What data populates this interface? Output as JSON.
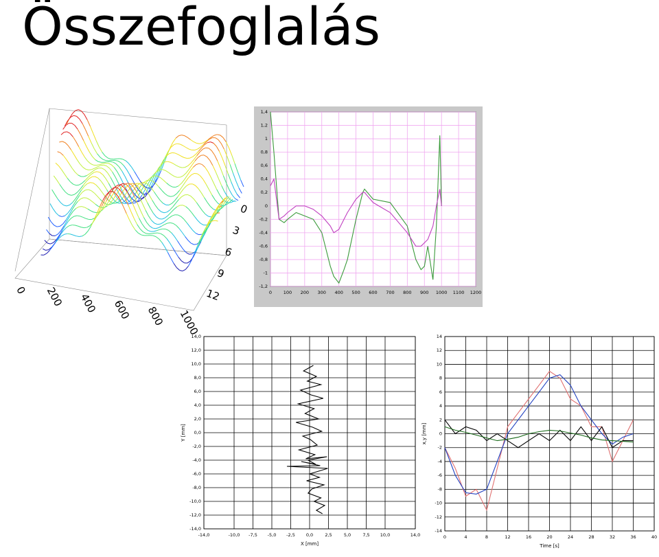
{
  "header": {
    "title": "Összefoglalás"
  },
  "chart_data": [
    {
      "type": "surface",
      "xticks": [
        0,
        200,
        400,
        600,
        800,
        1000
      ],
      "yticks": [
        0,
        3,
        6,
        9,
        12
      ]
    },
    {
      "type": "line",
      "x": [
        0,
        20,
        50,
        80,
        100,
        150,
        200,
        250,
        300,
        350,
        370,
        400,
        430,
        450,
        500,
        540,
        550,
        600,
        700,
        800,
        850,
        880,
        900,
        920,
        950,
        970,
        990,
        1000
      ],
      "series": [
        {
          "color": "#3a9a3a",
          "values": [
            1.4,
            0.8,
            -0.2,
            -0.25,
            -0.2,
            -0.1,
            -0.15,
            -0.2,
            -0.4,
            -0.9,
            -1.05,
            -1.15,
            -0.95,
            -0.8,
            -0.2,
            0.2,
            0.25,
            0.1,
            0.05,
            -0.3,
            -0.8,
            -0.95,
            -0.9,
            -0.6,
            -1.1,
            -0.3,
            1.05,
            0
          ]
        },
        {
          "color": "#c040c0",
          "values": [
            0.3,
            0.4,
            -0.2,
            -0.15,
            -0.1,
            0.0,
            0.0,
            -0.05,
            -0.15,
            -0.3,
            -0.4,
            -0.35,
            -0.2,
            -0.1,
            0.1,
            0.2,
            0.2,
            0.05,
            -0.1,
            -0.4,
            -0.6,
            -0.6,
            -0.55,
            -0.5,
            -0.3,
            0.0,
            0.25,
            0
          ]
        }
      ],
      "xlim": [
        0,
        1200
      ],
      "xticks": [
        0,
        100,
        200,
        300,
        400,
        500,
        600,
        700,
        800,
        900,
        1000,
        1100,
        1200
      ],
      "ylim": [
        -1.2,
        1.4
      ],
      "yticks": [
        {
          "value": -1.2,
          "label": "-1,2"
        },
        {
          "value": -1,
          "label": "-1"
        },
        {
          "value": -0.8,
          "label": "-0,8"
        },
        {
          "value": -0.6,
          "label": "-0,6"
        },
        {
          "value": -0.4,
          "label": "-0,4"
        },
        {
          "value": -0.2,
          "label": "-0,2"
        },
        0,
        {
          "value": 0.2,
          "label": "0,2"
        },
        {
          "value": 0.4,
          "label": "0,4"
        },
        {
          "value": 0.6,
          "label": "0,6"
        },
        {
          "value": 0.8,
          "label": "0,8"
        },
        1,
        {
          "value": 1.2,
          "label": "1,2"
        },
        {
          "value": 1.4,
          "label": "1,4"
        }
      ],
      "grid": true,
      "grid_color": "#f0a8f0",
      "background": "#c8c8c8"
    },
    {
      "type": "line",
      "xlabel": "X [mm]",
      "ylabel": "Y [mm]",
      "x": [
        0.5,
        -0.8,
        0.9,
        -0.3,
        1.5,
        -1.2,
        0.2,
        1.8,
        -1.5,
        0.6,
        -0.6,
        1.2,
        -1.8,
        0.4,
        1.6,
        -0.9,
        0.1,
        1.0,
        -1.4,
        0.7,
        -0.5,
        2.3,
        -0.2,
        0.8,
        -1.1,
        1.4,
        -3.0,
        2.4,
        0.0,
        1.3,
        -0.4,
        1.9,
        0.3,
        -0.2,
        1.5,
        0.6,
        2.0,
        0.9,
        1.7
      ],
      "series": [
        {
          "color": "#000000",
          "values": [
            9.8,
            9.0,
            8.2,
            7.5,
            7.0,
            6.2,
            5.5,
            5.0,
            4.2,
            3.5,
            2.8,
            2.0,
            1.5,
            0.8,
            0.2,
            -0.5,
            -1.0,
            -1.8,
            -2.5,
            -3.2,
            -3.8,
            -3.5,
            -4.0,
            -4.6,
            -4.2,
            -4.8,
            -4.9,
            -5.2,
            -6.0,
            -6.5,
            -7.0,
            -7.6,
            -8.2,
            -8.8,
            -9.5,
            -10.0,
            -10.6,
            -11.3,
            -11.8
          ]
        }
      ],
      "xlim": [
        -14,
        14
      ],
      "xticks": [
        {
          "value": -14,
          "label": "-14,0"
        },
        {
          "value": -10,
          "label": "-10,0"
        },
        {
          "value": -7.5,
          "label": "-7,5"
        },
        {
          "value": -5,
          "label": "-5,0"
        },
        {
          "value": -2.5,
          "label": "-2,5"
        },
        {
          "value": 0,
          "label": "0,0"
        },
        {
          "value": 2.5,
          "label": "2,5"
        },
        {
          "value": 5,
          "label": "5,0"
        },
        {
          "value": 7.5,
          "label": "7,5"
        },
        {
          "value": 10,
          "label": "10,0"
        },
        {
          "value": 14,
          "label": "14,0"
        }
      ],
      "ylim": [
        -14,
        14
      ],
      "yticks": [
        {
          "value": -14,
          "label": "-14,0"
        },
        {
          "value": -12,
          "label": "-12,0"
        },
        {
          "value": -10,
          "label": "-10,0"
        },
        {
          "value": -8,
          "label": "-8,0"
        },
        {
          "value": -6,
          "label": "-6,0"
        },
        {
          "value": -4,
          "label": "-4,0"
        },
        {
          "value": -2,
          "label": "-2,0"
        },
        {
          "value": 0,
          "label": "0,0"
        },
        {
          "value": 2,
          "label": "2,0"
        },
        {
          "value": 4,
          "label": "4,0"
        },
        {
          "value": 6,
          "label": "6,0"
        },
        {
          "value": 8,
          "label": "8,0"
        },
        {
          "value": 10,
          "label": "10,0"
        },
        {
          "value": 12,
          "label": "12,0"
        },
        {
          "value": 14,
          "label": "14,0"
        }
      ],
      "grid": true,
      "grid_color": "#000000",
      "background": "#ffffff"
    },
    {
      "type": "line",
      "xlabel": "Time [s]",
      "ylabel": "x,y [mm]",
      "x": [
        0,
        2,
        4,
        6,
        8,
        10,
        12,
        14,
        16,
        18,
        20,
        22,
        24,
        26,
        28,
        30,
        32,
        34,
        36
      ],
      "series": [
        {
          "color": "#e07070",
          "values": [
            -2,
            -5,
            -9,
            -8,
            -11,
            -5,
            1,
            3,
            5,
            7,
            9,
            8,
            5,
            4,
            1,
            1,
            -4,
            -1,
            2
          ]
        },
        {
          "color": "#2040c0",
          "values": [
            -2,
            -6,
            -8.5,
            -8.7,
            -8,
            -4,
            0,
            2,
            4,
            6,
            8,
            8.5,
            7,
            4,
            2,
            0,
            -1.5,
            -0.5,
            0
          ]
        },
        {
          "color": "#000000",
          "values": [
            2,
            0,
            1,
            0.5,
            -1,
            0,
            -1,
            -2,
            -1,
            0,
            -1,
            0.5,
            -1,
            1,
            -1,
            1,
            -2,
            -1,
            -1
          ]
        },
        {
          "color": "#1a6a1a",
          "values": [
            1,
            0.5,
            0.2,
            -0.2,
            -0.6,
            -1,
            -0.8,
            -0.5,
            0,
            0.3,
            0.5,
            0.4,
            0.1,
            -0.2,
            -0.6,
            -0.9,
            -1,
            -1.1,
            -1.2
          ]
        }
      ],
      "xlim": [
        0,
        40
      ],
      "xticks": [
        0,
        4,
        8,
        12,
        16,
        20,
        24,
        28,
        32,
        36,
        40
      ],
      "ylim": [
        -14,
        14
      ],
      "yticks": [
        -14,
        -12,
        -10,
        -8,
        -6,
        -4,
        -2,
        0,
        2,
        4,
        6,
        8,
        10,
        12,
        14
      ],
      "grid": true,
      "grid_color": "#000000",
      "background": "#ffffff"
    }
  ]
}
